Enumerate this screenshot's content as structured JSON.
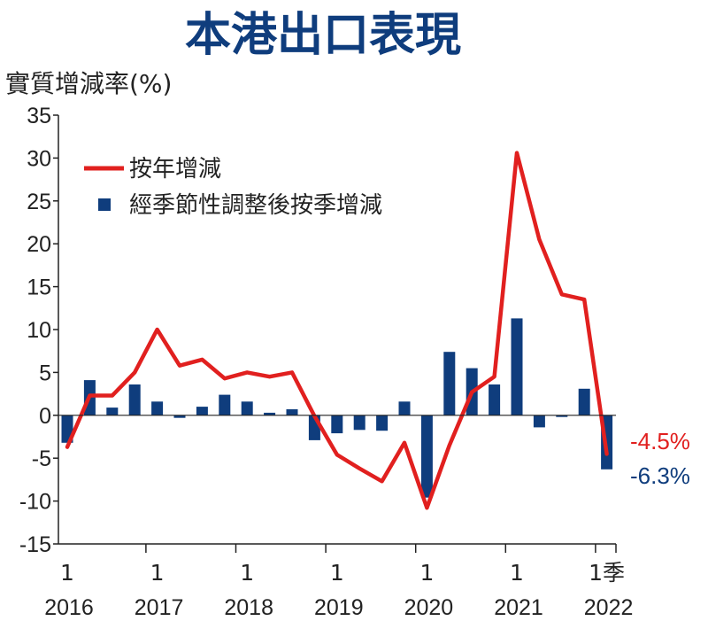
{
  "chart_data": {
    "type": "bar+line",
    "title": "本港出口表現",
    "ylabel": "實質增減率(%)",
    "ylim": [
      -15,
      35
    ],
    "yticks": [
      35,
      30,
      25,
      20,
      15,
      10,
      5,
      0,
      -5,
      -10,
      -15
    ],
    "xlabels": [
      {
        "quarter": "1",
        "year": "2016",
        "index": 0
      },
      {
        "quarter": "1",
        "year": "2017",
        "index": 4
      },
      {
        "quarter": "1",
        "year": "2018",
        "index": 8
      },
      {
        "quarter": "1",
        "year": "2019",
        "index": 12
      },
      {
        "quarter": "1",
        "year": "2020",
        "index": 16
      },
      {
        "quarter": "1",
        "year": "2021",
        "index": 20
      },
      {
        "quarter": "1季",
        "year": "2022",
        "index": 24
      }
    ],
    "series": [
      {
        "name": "按年增減",
        "kind": "line",
        "color": "#e1201f",
        "values": [
          -3.7,
          2.3,
          2.3,
          5.0,
          10.0,
          5.8,
          6.5,
          4.3,
          5.0,
          4.5,
          5.0,
          -0.1,
          -4.6,
          -6.2,
          -7.7,
          -3.2,
          -10.8,
          -3.5,
          2.7,
          4.5,
          30.6,
          20.5,
          14.1,
          13.5,
          -4.5
        ]
      },
      {
        "name": "經季節性調整後按季增減",
        "kind": "bar",
        "color": "#0f3d7d",
        "values": [
          -3.2,
          4.1,
          0.9,
          3.6,
          1.6,
          -0.3,
          1.0,
          2.4,
          1.6,
          0.3,
          0.7,
          -2.9,
          -2.1,
          -1.7,
          -1.8,
          1.6,
          -9.6,
          7.4,
          5.5,
          3.6,
          11.3,
          -1.4,
          -0.2,
          3.1,
          -6.3
        ]
      }
    ],
    "end_labels": {
      "line": "-4.5%",
      "bar": "-6.3%"
    },
    "legend_position": "top-left",
    "grid": false
  }
}
